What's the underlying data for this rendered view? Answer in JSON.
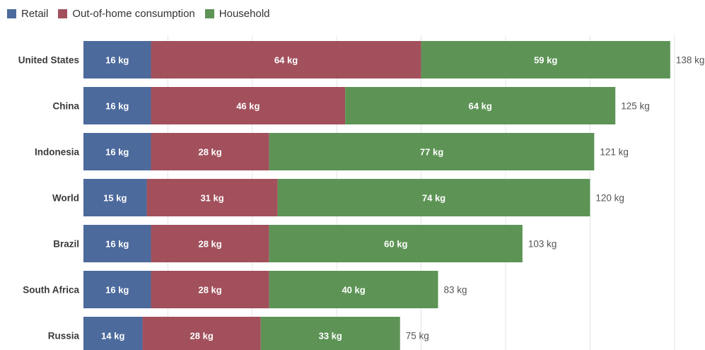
{
  "chart_data": {
    "type": "bar",
    "orientation": "horizontal",
    "stacked": true,
    "categories": [
      "United States",
      "China",
      "Indonesia",
      "World",
      "Brazil",
      "South Africa",
      "Russia"
    ],
    "series": [
      {
        "name": "Retail",
        "color": "#4c6a9c",
        "values": [
          16,
          16,
          16,
          15,
          16,
          16,
          14
        ],
        "labels": [
          "16 kg",
          "16 kg",
          "16 kg",
          "15 kg",
          "16 kg",
          "16 kg",
          "14 kg"
        ]
      },
      {
        "name": "Out-of-home consumption",
        "color": "#a2505c",
        "values": [
          64,
          46,
          28,
          31,
          28,
          28,
          28
        ],
        "labels": [
          "64 kg",
          "46 kg",
          "28 kg",
          "31 kg",
          "28 kg",
          "28 kg",
          "28 kg"
        ]
      },
      {
        "name": "Household",
        "color": "#5d9456",
        "values": [
          59,
          64,
          77,
          74,
          60,
          40,
          33
        ],
        "labels": [
          "59 kg",
          "64 kg",
          "77 kg",
          "74 kg",
          "60 kg",
          "40 kg",
          "33 kg"
        ]
      }
    ],
    "totals": [
      138,
      125,
      121,
      120,
      103,
      83,
      75
    ],
    "total_labels": [
      "138 kg",
      "125 kg",
      "121 kg",
      "120 kg",
      "103 kg",
      "83 kg",
      "75 kg"
    ],
    "unit": "kg",
    "xlim": [
      0,
      140
    ],
    "grid": true,
    "legend_position": "top-left"
  }
}
